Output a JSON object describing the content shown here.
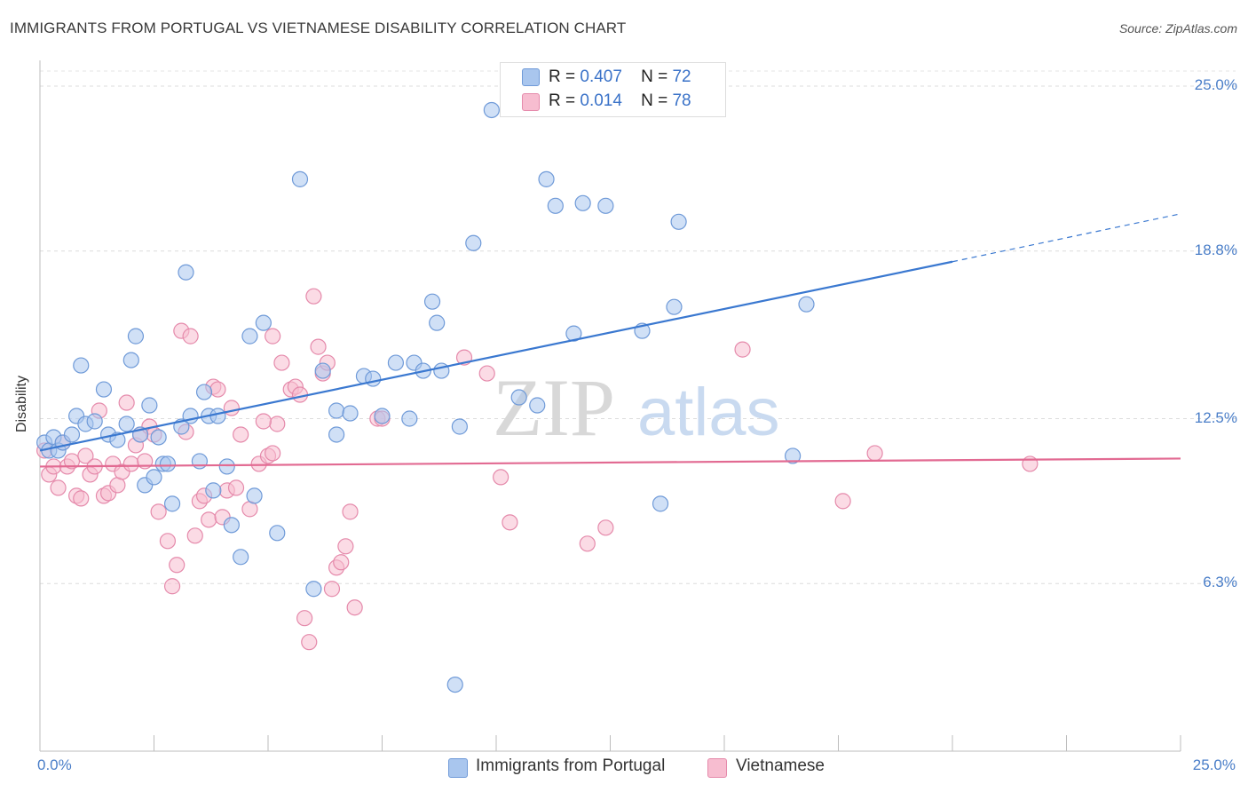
{
  "header": {
    "title": "IMMIGRANTS FROM PORTUGAL VS VIETNAMESE DISABILITY CORRELATION CHART",
    "source": "Source: ZipAtlas.com"
  },
  "watermark": {
    "zip": "ZIP",
    "atlas": "atlas"
  },
  "legend": {
    "series1": {
      "r_label": "R =",
      "r_value": "0.407",
      "n_label": "N =",
      "n_value": "72",
      "color": "#a9c6ee",
      "stroke": "#6f9ad8"
    },
    "series2": {
      "r_label": "R =",
      "r_value": "0.014",
      "n_label": "N =",
      "n_value": "78",
      "color": "#f7bdd0",
      "stroke": "#e58aab"
    }
  },
  "chart_data": {
    "type": "scatter",
    "title": "IMMIGRANTS FROM PORTUGAL VS VIETNAMESE DISABILITY CORRELATION CHART",
    "xlabel": "",
    "ylabel": "Disability",
    "xlim": [
      0,
      25
    ],
    "ylim": [
      0,
      26.5
    ],
    "x_tick_labels": [
      "0.0%",
      "25.0%"
    ],
    "y_ticks": [
      6.3,
      12.5,
      18.8,
      25.0
    ],
    "y_tick_labels": [
      "6.3%",
      "12.5%",
      "18.8%",
      "25.0%"
    ],
    "grid": "horizontal dashed",
    "legend_position": "top-center and bottom",
    "series": [
      {
        "name": "Immigrants from Portugal",
        "color": "#6f9ad8",
        "fill": "#a9c6ee",
        "trend": {
          "x": [
            0,
            20
          ],
          "y": [
            11.3,
            18.4
          ],
          "dashed_to": [
            25,
            20.2
          ]
        },
        "points": [
          [
            0.1,
            11.6
          ],
          [
            0.2,
            11.3
          ],
          [
            0.3,
            11.8
          ],
          [
            0.4,
            11.3
          ],
          [
            0.5,
            11.6
          ],
          [
            0.7,
            11.9
          ],
          [
            0.8,
            12.6
          ],
          [
            0.9,
            14.5
          ],
          [
            1.0,
            12.3
          ],
          [
            1.2,
            12.4
          ],
          [
            1.4,
            13.6
          ],
          [
            1.5,
            11.9
          ],
          [
            1.7,
            11.7
          ],
          [
            1.9,
            12.3
          ],
          [
            2.0,
            14.7
          ],
          [
            2.1,
            15.6
          ],
          [
            2.2,
            11.9
          ],
          [
            2.3,
            10.0
          ],
          [
            2.4,
            13.0
          ],
          [
            2.5,
            10.3
          ],
          [
            2.6,
            11.8
          ],
          [
            2.7,
            10.8
          ],
          [
            2.8,
            10.8
          ],
          [
            2.9,
            9.3
          ],
          [
            3.1,
            12.2
          ],
          [
            3.2,
            18.0
          ],
          [
            3.3,
            12.6
          ],
          [
            3.5,
            10.9
          ],
          [
            3.6,
            13.5
          ],
          [
            3.7,
            12.6
          ],
          [
            3.8,
            9.8
          ],
          [
            3.9,
            12.6
          ],
          [
            4.1,
            10.7
          ],
          [
            4.2,
            8.5
          ],
          [
            4.4,
            7.3
          ],
          [
            4.6,
            15.6
          ],
          [
            4.7,
            9.6
          ],
          [
            4.9,
            16.1
          ],
          [
            5.2,
            8.2
          ],
          [
            5.7,
            21.5
          ],
          [
            6.0,
            6.1
          ],
          [
            6.2,
            14.3
          ],
          [
            6.5,
            12.8
          ],
          [
            6.5,
            11.9
          ],
          [
            6.8,
            12.7
          ],
          [
            7.1,
            14.1
          ],
          [
            7.3,
            14.0
          ],
          [
            7.5,
            12.6
          ],
          [
            7.8,
            14.6
          ],
          [
            8.1,
            12.5
          ],
          [
            8.2,
            14.6
          ],
          [
            8.4,
            14.3
          ],
          [
            8.6,
            16.9
          ],
          [
            8.7,
            16.1
          ],
          [
            8.8,
            14.3
          ],
          [
            9.1,
            2.5
          ],
          [
            9.2,
            12.2
          ],
          [
            9.5,
            19.1
          ],
          [
            9.9,
            24.1
          ],
          [
            10.5,
            13.3
          ],
          [
            10.9,
            13.0
          ],
          [
            11.1,
            21.5
          ],
          [
            11.3,
            20.5
          ],
          [
            11.9,
            20.6
          ],
          [
            12.4,
            20.5
          ],
          [
            11.7,
            15.7
          ],
          [
            13.2,
            15.8
          ],
          [
            13.6,
            9.3
          ],
          [
            13.9,
            16.7
          ],
          [
            14.0,
            19.9
          ],
          [
            16.8,
            16.8
          ],
          [
            16.5,
            11.1
          ]
        ]
      },
      {
        "name": "Vietnamese",
        "color": "#e58aab",
        "fill": "#f7bdd0",
        "trend": {
          "x": [
            0,
            25
          ],
          "y": [
            10.7,
            11.0
          ]
        },
        "points": [
          [
            0.1,
            11.3
          ],
          [
            0.2,
            10.4
          ],
          [
            0.3,
            10.7
          ],
          [
            0.4,
            9.9
          ],
          [
            0.5,
            11.6
          ],
          [
            0.6,
            10.7
          ],
          [
            0.7,
            10.9
          ],
          [
            0.8,
            9.6
          ],
          [
            0.9,
            9.5
          ],
          [
            1.0,
            11.1
          ],
          [
            1.1,
            10.4
          ],
          [
            1.2,
            10.7
          ],
          [
            1.3,
            12.8
          ],
          [
            1.4,
            9.6
          ],
          [
            1.5,
            9.7
          ],
          [
            1.6,
            10.8
          ],
          [
            1.7,
            10.0
          ],
          [
            1.8,
            10.5
          ],
          [
            1.9,
            13.1
          ],
          [
            2.0,
            10.8
          ],
          [
            2.1,
            11.5
          ],
          [
            2.2,
            11.9
          ],
          [
            2.3,
            10.9
          ],
          [
            2.4,
            12.2
          ],
          [
            2.5,
            11.9
          ],
          [
            2.6,
            9.0
          ],
          [
            2.8,
            7.9
          ],
          [
            2.9,
            6.2
          ],
          [
            3.0,
            7.0
          ],
          [
            3.1,
            15.8
          ],
          [
            3.2,
            12.0
          ],
          [
            3.3,
            15.6
          ],
          [
            3.4,
            8.1
          ],
          [
            3.5,
            9.4
          ],
          [
            3.6,
            9.6
          ],
          [
            3.7,
            8.7
          ],
          [
            3.8,
            13.7
          ],
          [
            3.9,
            13.6
          ],
          [
            4.0,
            8.8
          ],
          [
            4.1,
            9.8
          ],
          [
            4.2,
            12.9
          ],
          [
            4.3,
            9.9
          ],
          [
            4.4,
            11.9
          ],
          [
            4.6,
            9.1
          ],
          [
            4.8,
            10.8
          ],
          [
            5.0,
            11.1
          ],
          [
            5.1,
            15.6
          ],
          [
            5.2,
            12.3
          ],
          [
            5.3,
            14.6
          ],
          [
            5.5,
            13.6
          ],
          [
            5.6,
            13.7
          ],
          [
            5.7,
            13.4
          ],
          [
            5.8,
            5.0
          ],
          [
            5.9,
            4.1
          ],
          [
            6.0,
            17.1
          ],
          [
            6.1,
            15.2
          ],
          [
            6.2,
            14.2
          ],
          [
            6.3,
            14.6
          ],
          [
            6.4,
            6.1
          ],
          [
            6.5,
            6.9
          ],
          [
            6.6,
            7.1
          ],
          [
            6.7,
            7.7
          ],
          [
            6.8,
            9.0
          ],
          [
            6.9,
            5.4
          ],
          [
            7.4,
            12.5
          ],
          [
            7.5,
            12.5
          ],
          [
            9.3,
            14.8
          ],
          [
            9.8,
            14.2
          ],
          [
            10.1,
            10.3
          ],
          [
            10.3,
            8.6
          ],
          [
            12.0,
            7.8
          ],
          [
            12.4,
            8.4
          ],
          [
            15.4,
            15.1
          ],
          [
            17.6,
            9.4
          ],
          [
            18.3,
            11.2
          ],
          [
            21.7,
            10.8
          ],
          [
            5.1,
            11.2
          ],
          [
            4.9,
            12.4
          ]
        ]
      }
    ]
  },
  "bottom_legend": {
    "series1": "Immigrants from Portugal",
    "series2": "Vietnamese"
  }
}
